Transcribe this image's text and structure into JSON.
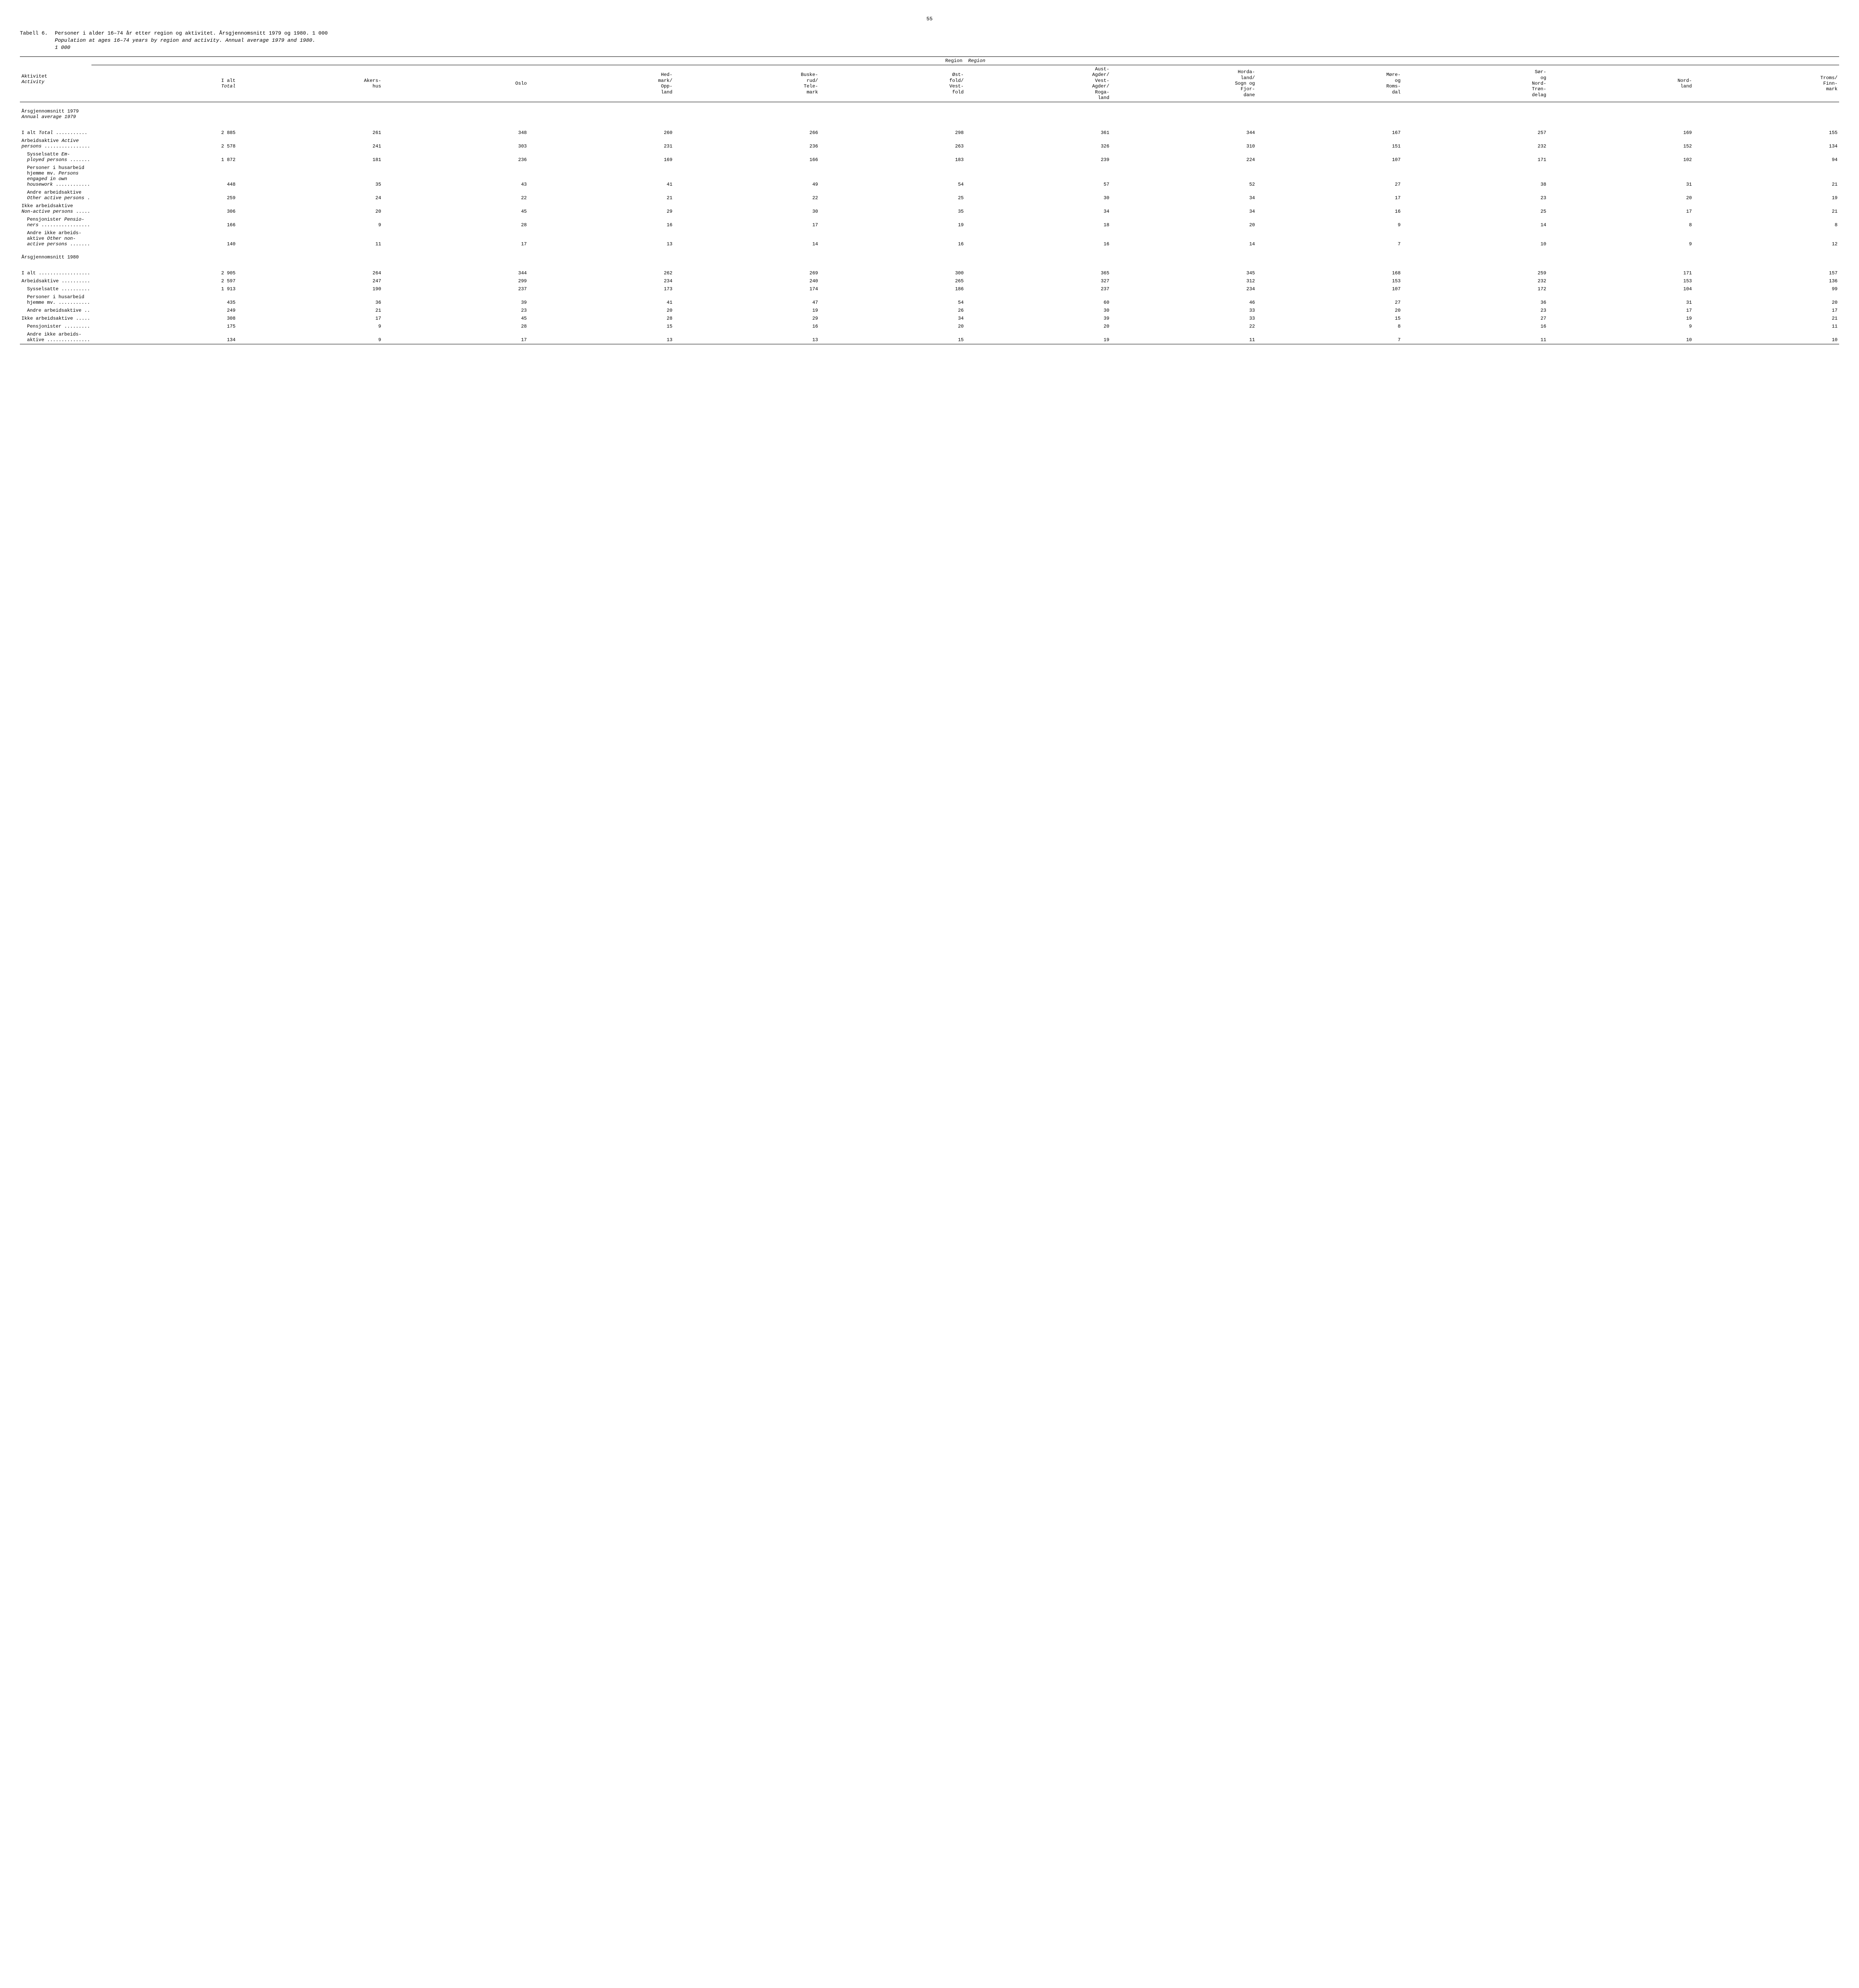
{
  "page_number": "55",
  "caption": {
    "prefix": "Tabell 6.",
    "title_no": "Personer i alder 16–74 år etter region og aktivitet.  Årsgjennomsnitt 1979 og 1980.  1 000",
    "title_en": "Population at ages 16–74 years by region and activity.  Annual average 1979 and 1980.",
    "unit_en": "1 000"
  },
  "columns": {
    "activity_no": "Aktivitet",
    "activity_en": "Activity",
    "region_no": "Region",
    "region_en": "Region",
    "headers": [
      "I alt\nTotal",
      "Akers-\nhus",
      "Oslo",
      "Hed-\nmark/\nOpp-\nland",
      "Buske-\nrud/\nTele-\nmark",
      "Øst-\nfold/\nVest-\nfold",
      "Aust-\nAgder/\nVest-\nAgder/\nRoga-\nland",
      "Horda-\nland/\nSogn og\nFjor-\ndane",
      "Møre-\nog\nRoms-\ndal",
      "Sør-\nog\nNord-\nTrøn-\ndelag",
      "Nord-\nland",
      "Troms/\nFinn-\nmark"
    ]
  },
  "sections": [
    {
      "heading_no": "Årsgjennomsnitt 1979",
      "heading_en": "Annual average 1979",
      "rows": [
        {
          "label": "I alt  <span class=\"italic\">Total</span> ...........",
          "indent": 0,
          "v": [
            "2 885",
            "261",
            "348",
            "260",
            "266",
            "298",
            "361",
            "344",
            "167",
            "257",
            "169",
            "155"
          ]
        },
        {
          "label": "Arbeidsaktive  <span class=\"italic\">Active<br>persons</span> ................",
          "indent": 0,
          "v": [
            "2 578",
            "241",
            "303",
            "231",
            "236",
            "263",
            "326",
            "310",
            "151",
            "232",
            "152",
            "134"
          ]
        },
        {
          "label": "Sysselsatte  <span class=\"italic\">Em-<br>ployed persons</span> .......",
          "indent": 1,
          "v": [
            "1 872",
            "181",
            "236",
            "169",
            "166",
            "183",
            "239",
            "224",
            "107",
            "171",
            "102",
            "94"
          ]
        },
        {
          "label": "Personer i husarbeid<br>hjemme mv.  <span class=\"italic\">Persons<br>engaged in own<br>housework</span> ............",
          "indent": 1,
          "v": [
            "448",
            "35",
            "43",
            "41",
            "49",
            "54",
            "57",
            "52",
            "27",
            "38",
            "31",
            "21"
          ]
        },
        {
          "label": "Andre arbeidsaktive<br><span class=\"italic\">Other active persons</span> .",
          "indent": 1,
          "v": [
            "259",
            "24",
            "22",
            "21",
            "22",
            "25",
            "30",
            "34",
            "17",
            "23",
            "20",
            "19"
          ]
        },
        {
          "label": "Ikke arbeidsaktive<br><span class=\"italic\">Non-active persons</span> .....",
          "indent": 0,
          "v": [
            "306",
            "20",
            "45",
            "29",
            "30",
            "35",
            "34",
            "34",
            "16",
            "25",
            "17",
            "21"
          ]
        },
        {
          "label": "Pensjonister  <span class=\"italic\">Pensio-<br>ners</span> .................",
          "indent": 1,
          "v": [
            "166",
            "9",
            "28",
            "16",
            "17",
            "19",
            "18",
            "20",
            "9",
            "14",
            "8",
            "8"
          ]
        },
        {
          "label": "Andre ikke arbeids-<br>aktive  <span class=\"italic\">Other non-<br>active persons</span> .......",
          "indent": 1,
          "v": [
            "140",
            "11",
            "17",
            "13",
            "14",
            "16",
            "16",
            "14",
            "7",
            "10",
            "9",
            "12"
          ]
        }
      ]
    },
    {
      "heading_no": "Årsgjennomsnitt 1980",
      "heading_en": "",
      "rows": [
        {
          "label": "I alt ..................",
          "indent": 0,
          "v": [
            "2 905",
            "264",
            "344",
            "262",
            "269",
            "300",
            "365",
            "345",
            "168",
            "259",
            "171",
            "157"
          ]
        },
        {
          "label": "Arbeidsaktive ..........",
          "indent": 0,
          "v": [
            "2 597",
            "247",
            "299",
            "234",
            "240",
            "265",
            "327",
            "312",
            "153",
            "232",
            "153",
            "136"
          ]
        },
        {
          "label": "Sysselsatte ..........",
          "indent": 1,
          "v": [
            "1 913",
            "190",
            "237",
            "173",
            "174",
            "186",
            "237",
            "234",
            "107",
            "172",
            "104",
            "99"
          ]
        },
        {
          "label": "Personer i husarbeid<br>hjemme mv. ...........",
          "indent": 1,
          "v": [
            "435",
            "36",
            "39",
            "41",
            "47",
            "54",
            "60",
            "46",
            "27",
            "36",
            "31",
            "20"
          ]
        },
        {
          "label": "Andre arbeidsaktive ..",
          "indent": 1,
          "v": [
            "249",
            "21",
            "23",
            "20",
            "19",
            "26",
            "30",
            "33",
            "20",
            "23",
            "17",
            "17"
          ]
        },
        {
          "label": "Ikke arbeidsaktive .....",
          "indent": 0,
          "v": [
            "308",
            "17",
            "45",
            "28",
            "29",
            "34",
            "39",
            "33",
            "15",
            "27",
            "19",
            "21"
          ]
        },
        {
          "label": "Pensjonister .........",
          "indent": 1,
          "v": [
            "175",
            "9",
            "28",
            "15",
            "16",
            "20",
            "20",
            "22",
            "8",
            "16",
            "9",
            "11"
          ]
        },
        {
          "label": "Andre ikke arbeids-<br>aktive ...............",
          "indent": 1,
          "v": [
            "134",
            "9",
            "17",
            "13",
            "13",
            "15",
            "19",
            "11",
            "7",
            "11",
            "10",
            "10"
          ]
        }
      ]
    }
  ],
  "style": {
    "font_family": "Courier New",
    "font_size_pt": 12,
    "text_color": "#000000",
    "background_color": "#ffffff",
    "rule_color": "#000000"
  }
}
